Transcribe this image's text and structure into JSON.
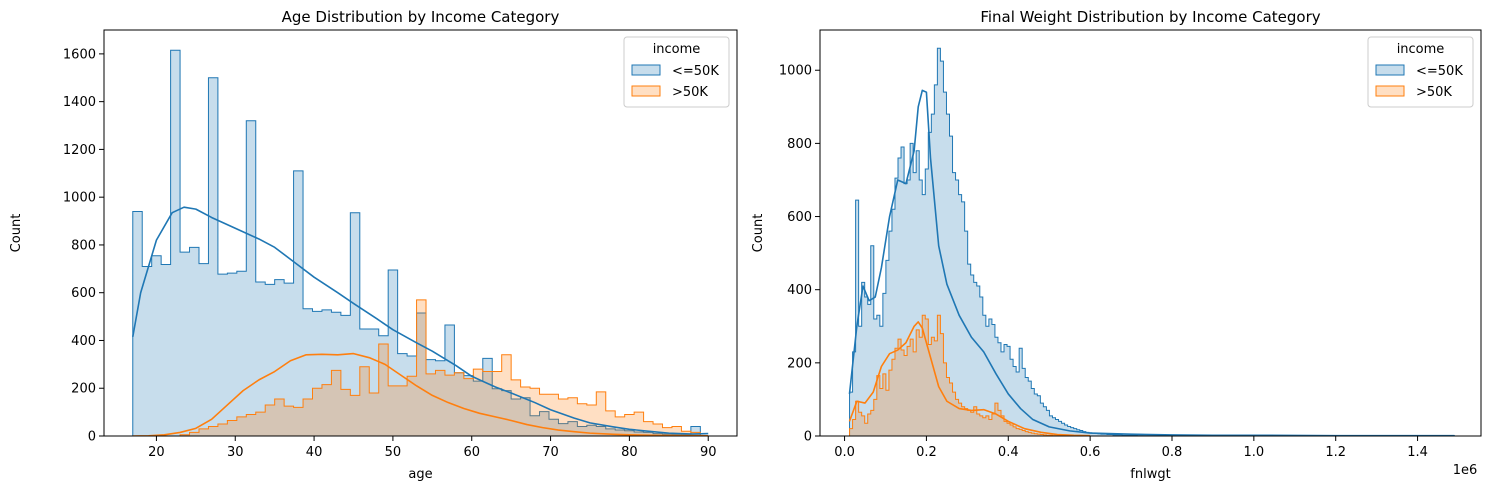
{
  "chart_data": [
    {
      "type": "histogram",
      "title": "Age Distribution by Income Category",
      "xlabel": "age",
      "ylabel": "Count",
      "xlim": [
        13.35,
        93.65
      ],
      "ylim": [
        0,
        1700
      ],
      "xticks": [
        20,
        30,
        40,
        50,
        60,
        70,
        80,
        90
      ],
      "xtick_labels": [
        "20",
        "30",
        "40",
        "50",
        "60",
        "70",
        "80",
        "90"
      ],
      "yticks": [
        0,
        200,
        400,
        600,
        800,
        1000,
        1200,
        1400,
        1600
      ],
      "ytick_labels": [
        "0",
        "200",
        "400",
        "600",
        "800",
        "1000",
        "1200",
        "1400",
        "1600"
      ],
      "bin_start": 17,
      "bin_width": 1.2,
      "legend": {
        "title": "income",
        "position": "top-right"
      },
      "colors": {
        "<=50K": "#1f77b4",
        ">50K": "#ff7f0e",
        "overlap_fill": "#c5c1b8"
      },
      "series": [
        {
          "name": "<=50K",
          "color": "#1f77b4",
          "fill": "#c6dbeb",
          "counts": [
            940,
            710,
            755,
            718,
            1615,
            770,
            790,
            722,
            1500,
            678,
            682,
            690,
            1320,
            645,
            635,
            655,
            640,
            1110,
            533,
            522,
            528,
            518,
            505,
            935,
            448,
            448,
            420,
            695,
            345,
            335,
            515,
            320,
            315,
            465,
            265,
            253,
            230,
            325,
            198,
            190,
            155,
            160,
            85,
            102,
            70,
            52,
            60,
            40,
            45,
            40,
            30,
            25,
            22,
            17,
            15,
            10,
            8,
            7,
            5,
            40
          ],
          "kde": {
            "x": [
              17,
              18,
              20,
              22,
              23.5,
              25,
              27,
              30,
              33,
              35,
              38,
              40,
              43,
              45,
              48,
              50,
              53,
              55,
              58,
              60,
              63,
              65,
              68,
              70,
              73,
              75,
              78,
              80,
              83,
              85,
              88,
              90
            ],
            "y": [
              415,
              600,
              820,
              935,
              958,
              950,
              915,
              870,
              825,
              790,
              715,
              665,
              600,
              555,
              490,
              445,
              390,
              355,
              295,
              250,
              205,
              180,
              140,
              110,
              75,
              55,
              38,
              28,
              18,
              12,
              8,
              10
            ]
          }
        },
        {
          "name": ">50K",
          "color": "#ff7f0e",
          "fill": "#ffd8b4",
          "counts": [
            0,
            0,
            0,
            0,
            0,
            5,
            15,
            30,
            40,
            50,
            65,
            80,
            90,
            100,
            130,
            155,
            125,
            120,
            155,
            200,
            215,
            275,
            195,
            170,
            290,
            180,
            385,
            210,
            210,
            250,
            570,
            260,
            275,
            255,
            265,
            240,
            280,
            270,
            270,
            340,
            235,
            205,
            200,
            175,
            175,
            155,
            160,
            135,
            130,
            185,
            105,
            80,
            90,
            100,
            60,
            50,
            35,
            40,
            20,
            15
          ],
          "kde": {
            "x": [
              17,
              19,
              21,
              23,
              25,
              27,
              29,
              31,
              33,
              35,
              37,
              39,
              41,
              43,
              45,
              47,
              49,
              51,
              53,
              55,
              57,
              59,
              61,
              63,
              65,
              67,
              69,
              71,
              73,
              75,
              78,
              80,
              83,
              86,
              90
            ],
            "y": [
              0,
              1,
              5,
              15,
              32,
              70,
              130,
              190,
              235,
              270,
              315,
              340,
              342,
              340,
              345,
              328,
              300,
              255,
              210,
              170,
              140,
              115,
              95,
              80,
              65,
              48,
              35,
              25,
              18,
              12,
              7,
              5,
              3,
              2,
              1
            ]
          }
        }
      ]
    },
    {
      "type": "histogram",
      "title": "Final Weight Distribution by Income Category",
      "xlabel": "fnlwgt",
      "ylabel": "Count",
      "x_offset_label": "1e6",
      "xlim": [
        -0.06,
        1.555
      ],
      "ylim": [
        0,
        1110
      ],
      "xticks": [
        0,
        0.2,
        0.4,
        0.6,
        0.8,
        1.0,
        1.2,
        1.4
      ],
      "xtick_labels": [
        "0.0",
        "0.2",
        "0.4",
        "0.6",
        "0.8",
        "1.0",
        "1.2",
        "1.4"
      ],
      "yticks": [
        0,
        200,
        400,
        600,
        800,
        1000
      ],
      "ytick_labels": [
        "0",
        "200",
        "400",
        "600",
        "800",
        "1000"
      ],
      "legend": {
        "title": "income",
        "position": "top-right"
      },
      "colors": {
        "<=50K": "#1f77b4",
        ">50K": "#ff7f0e",
        "overlap_fill": "#c5c1b8"
      },
      "series": [
        {
          "name": "<=50K",
          "color": "#1f77b4",
          "fill": "#c6dbeb",
          "bin_start": 0.0122,
          "bin_width": 0.0074,
          "counts": [
            120,
            230,
            645,
            300,
            420,
            380,
            360,
            520,
            320,
            330,
            300,
            390,
            480,
            560,
            620,
            705,
            760,
            790,
            690,
            700,
            800,
            720,
            780,
            700,
            660,
            730,
            830,
            880,
            960,
            1060,
            1025,
            940,
            880,
            820,
            720,
            700,
            660,
            640,
            560,
            470,
            440,
            420,
            410,
            380,
            330,
            300,
            320,
            305,
            270,
            255,
            230,
            250,
            245,
            210,
            190,
            175,
            240,
            185,
            160,
            150,
            130,
            115,
            110,
            90,
            80,
            70,
            55,
            50,
            45,
            40,
            35,
            30,
            26,
            23,
            20,
            17,
            15,
            12,
            10,
            9,
            8,
            7,
            6,
            5,
            5,
            4,
            4,
            3,
            3,
            3,
            2,
            2,
            2,
            2,
            2,
            1,
            1,
            1,
            1,
            1
          ],
          "tail_end": 1.49,
          "kde": {
            "x": [
              0.012,
              0.03,
              0.045,
              0.06,
              0.075,
              0.09,
              0.11,
              0.13,
              0.15,
              0.17,
              0.18,
              0.19,
              0.2,
              0.21,
              0.23,
              0.25,
              0.28,
              0.31,
              0.34,
              0.37,
              0.4,
              0.43,
              0.46,
              0.5,
              0.55,
              0.6,
              0.7,
              0.8,
              0.9,
              1.0,
              1.2,
              1.49
            ],
            "y": [
              115,
              300,
              410,
              370,
              380,
              460,
              600,
              700,
              690,
              780,
              900,
              945,
              940,
              760,
              520,
              415,
              330,
              270,
              230,
              170,
              115,
              75,
              45,
              25,
              14,
              8,
              5,
              3,
              2,
              2,
              1,
              1
            ]
          }
        },
        {
          "name": ">50K",
          "color": "#ff7f0e",
          "fill": "#ffd8b4",
          "bin_start": 0.0122,
          "bin_width": 0.0074,
          "counts": [
            20,
            45,
            95,
            65,
            55,
            35,
            60,
            70,
            100,
            165,
            130,
            170,
            125,
            180,
            210,
            240,
            265,
            235,
            220,
            245,
            265,
            230,
            290,
            270,
            330,
            320,
            250,
            270,
            260,
            330,
            280,
            200,
            160,
            145,
            120,
            100,
            90,
            80,
            75,
            70,
            65,
            80,
            60,
            55,
            50,
            55,
            45,
            60,
            90,
            70,
            55,
            40,
            35,
            30,
            25,
            20,
            18,
            15,
            12,
            10,
            8,
            6,
            5,
            4,
            3,
            2,
            2,
            1,
            1,
            1
          ],
          "kde": {
            "x": [
              0.012,
              0.03,
              0.05,
              0.07,
              0.09,
              0.11,
              0.13,
              0.15,
              0.17,
              0.18,
              0.19,
              0.21,
              0.23,
              0.25,
              0.28,
              0.31,
              0.34,
              0.37,
              0.4,
              0.44,
              0.48,
              0.52,
              0.56,
              0.6
            ],
            "y": [
              40,
              95,
              90,
              120,
              190,
              225,
              235,
              255,
              300,
              312,
              295,
              215,
              135,
              95,
              75,
              70,
              72,
              60,
              40,
              20,
              10,
              4,
              2,
              1
            ]
          }
        }
      ]
    }
  ]
}
